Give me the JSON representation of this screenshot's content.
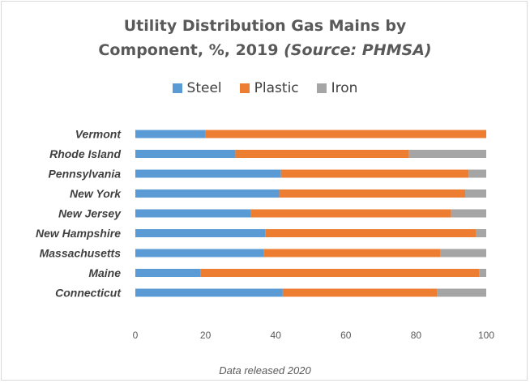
{
  "title_line1": "Utility Distribution Gas Mains by",
  "title_line2_main": "Component, %, 2019",
  "title_line2_source": "(Source: PHMSA)",
  "footnote": "Data released 2020",
  "colors": {
    "Steel": "#5b9bd5",
    "Plastic": "#ed7d31",
    "Iron": "#a5a5a5"
  },
  "chart_data": {
    "type": "bar",
    "orientation": "horizontal",
    "stacked": true,
    "title": "Utility Distribution Gas Mains by Component, %, 2019 (Source: PHMSA)",
    "categories": [
      "Vermont",
      "Rhode Island",
      "Pennsylvania",
      "New York",
      "New Jersey",
      "New Hampshire",
      "Massachusetts",
      "Maine",
      "Connecticut"
    ],
    "series": [
      {
        "name": "Steel",
        "values": [
          20,
          28.5,
          41.5,
          41,
          33,
          37,
          36.5,
          18.5,
          42
        ]
      },
      {
        "name": "Plastic",
        "values": [
          80,
          49.5,
          53.5,
          53,
          57,
          60,
          50.5,
          79.5,
          44
        ]
      },
      {
        "name": "Iron",
        "values": [
          0,
          22,
          5,
          6,
          10,
          3,
          13,
          2,
          14
        ]
      }
    ],
    "xticks": [
      "0",
      "20",
      "40",
      "60",
      "80",
      "100"
    ],
    "xlim": [
      0,
      100
    ],
    "xlabel": "",
    "ylabel": "",
    "legend_position": "top",
    "grid": false
  }
}
